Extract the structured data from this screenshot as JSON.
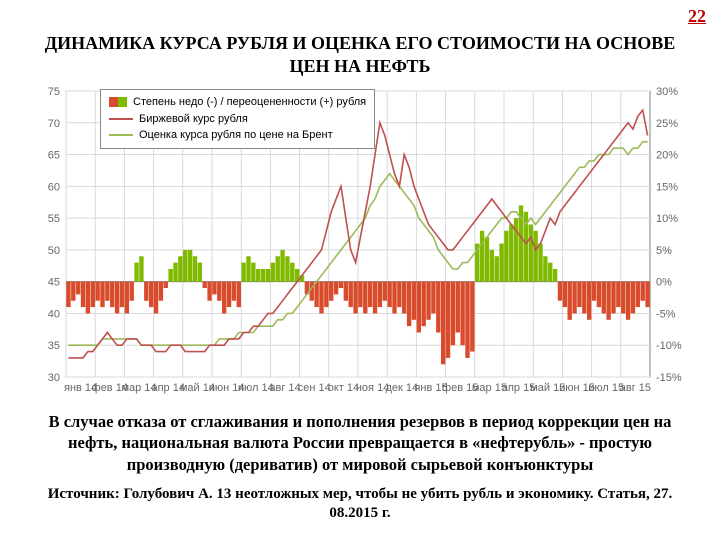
{
  "page_number": "22",
  "title": "ДИНАМИКА КУРСА РУБЛЯ И ОЦЕНКА ЕГО СТОИМОСТИ НА ОСНОВЕ ЦЕН НА НЕФТЬ",
  "caption": "В случае отказа от сглаживания и пополнения резервов в период коррекции цен на нефть, национальная валюта России превращается в «нефтерубль» - простую производную (дериватив) от мировой сырьевой конъюнктуры",
  "source": "Источник: Голубович А. 13 неотложных мер, чтобы не убить рубль и экономику. Статья, 27. 08.2015 г.",
  "chart": {
    "type": "combo-bar-line",
    "plot_bg": "#ffffff",
    "grid_color": "#d9d9d9",
    "axis_color": "#808080",
    "tick_font_size": 11,
    "x_categories": [
      "янв 14",
      "фев 14",
      "мар 14",
      "апр 14",
      "май 14",
      "июн 14",
      "июл 14",
      "авг 14",
      "сен 14",
      "окт 14",
      "ноя 14",
      "дек 14",
      "янв 15",
      "фев 15",
      "мар 15",
      "апр 15",
      "май 15",
      "июн 15",
      "июл 15",
      "авг 15"
    ],
    "y_left": {
      "min": 30,
      "max": 75,
      "step": 5
    },
    "y_right": {
      "min": -15,
      "max": 30,
      "step": 5,
      "suffix": "%"
    },
    "legend": [
      {
        "kind": "bar",
        "label": "Степень недо (-) / переоцененности (+) рубля",
        "color_pos": "#7fba00",
        "color_neg": "#d94b2b"
      },
      {
        "kind": "line",
        "label": "Биржевой курс рубля",
        "color": "#c0504d"
      },
      {
        "kind": "line",
        "label": "Оценка курса рубля по цене на Брент",
        "color": "#9bbb59"
      }
    ],
    "bars_pct": [
      -4,
      -3,
      -2,
      -4,
      -5,
      -4,
      -3,
      -4,
      -3,
      -4,
      -5,
      -4,
      -5,
      -3,
      3,
      4,
      -3,
      -4,
      -5,
      -3,
      -1,
      2,
      3,
      4,
      5,
      5,
      4,
      3,
      -1,
      -3,
      -2,
      -3,
      -5,
      -4,
      -3,
      -4,
      3,
      4,
      3,
      2,
      2,
      2,
      3,
      4,
      5,
      4,
      3,
      2,
      1,
      -2,
      -3,
      -4,
      -5,
      -4,
      -3,
      -2,
      -1,
      -3,
      -4,
      -5,
      -4,
      -5,
      -4,
      -5,
      -4,
      -3,
      -4,
      -5,
      -4,
      -5,
      -7,
      -6,
      -8,
      -7,
      -6,
      -5,
      -8,
      -13,
      -12,
      -10,
      -8,
      -10,
      -12,
      -11,
      6,
      8,
      7,
      5,
      4,
      6,
      8,
      9,
      10,
      12,
      11,
      9,
      8,
      6,
      4,
      3,
      2,
      -3,
      -4,
      -6,
      -5,
      -4,
      -5,
      -6,
      -3,
      -4,
      -5,
      -6,
      -5,
      -4,
      -5,
      -6,
      -5,
      -4,
      -3,
      -4
    ],
    "line_market": [
      33,
      33,
      33,
      33,
      34,
      34,
      35,
      36,
      37,
      36,
      35,
      35,
      36,
      36,
      36,
      35,
      35,
      35,
      34,
      34,
      34,
      35,
      35,
      35,
      34,
      34,
      34,
      34,
      34,
      35,
      35,
      35,
      35,
      36,
      36,
      36,
      37,
      37,
      38,
      38,
      39,
      40,
      40,
      41,
      42,
      43,
      44,
      45,
      46,
      47,
      48,
      49,
      50,
      53,
      56,
      58,
      60,
      55,
      50,
      48,
      52,
      56,
      60,
      65,
      70,
      68,
      65,
      62,
      60,
      65,
      63,
      60,
      58,
      56,
      54,
      53,
      52,
      51,
      50,
      50,
      51,
      52,
      53,
      54,
      55,
      56,
      57,
      58,
      57,
      56,
      55,
      54,
      53,
      52,
      51,
      52,
      50,
      51,
      53,
      55,
      54,
      56,
      57,
      58,
      59,
      60,
      61,
      62,
      63,
      64,
      65,
      66,
      67,
      68,
      69,
      70,
      69,
      71,
      72,
      68
    ],
    "line_brent_estimate": [
      35,
      35,
      35,
      35,
      35,
      35,
      35,
      36,
      36,
      36,
      36,
      36,
      36,
      36,
      36,
      35,
      35,
      35,
      35,
      35,
      35,
      35,
      35,
      35,
      35,
      35,
      35,
      35,
      35,
      35,
      35,
      36,
      36,
      36,
      36,
      37,
      37,
      37,
      37,
      38,
      38,
      38,
      38,
      39,
      39,
      40,
      40,
      41,
      42,
      43,
      44,
      45,
      46,
      47,
      48,
      49,
      50,
      51,
      52,
      53,
      54,
      55,
      57,
      58,
      60,
      61,
      62,
      61,
      60,
      59,
      58,
      57,
      55,
      54,
      53,
      52,
      50,
      49,
      48,
      47,
      47,
      48,
      48,
      49,
      50,
      51,
      52,
      53,
      54,
      55,
      55,
      56,
      56,
      55,
      54,
      55,
      54,
      55,
      56,
      57,
      58,
      59,
      60,
      61,
      62,
      63,
      63,
      64,
      64,
      65,
      65,
      65,
      66,
      66,
      66,
      65,
      66,
      66,
      67,
      67
    ],
    "line_width": 1.6
  }
}
